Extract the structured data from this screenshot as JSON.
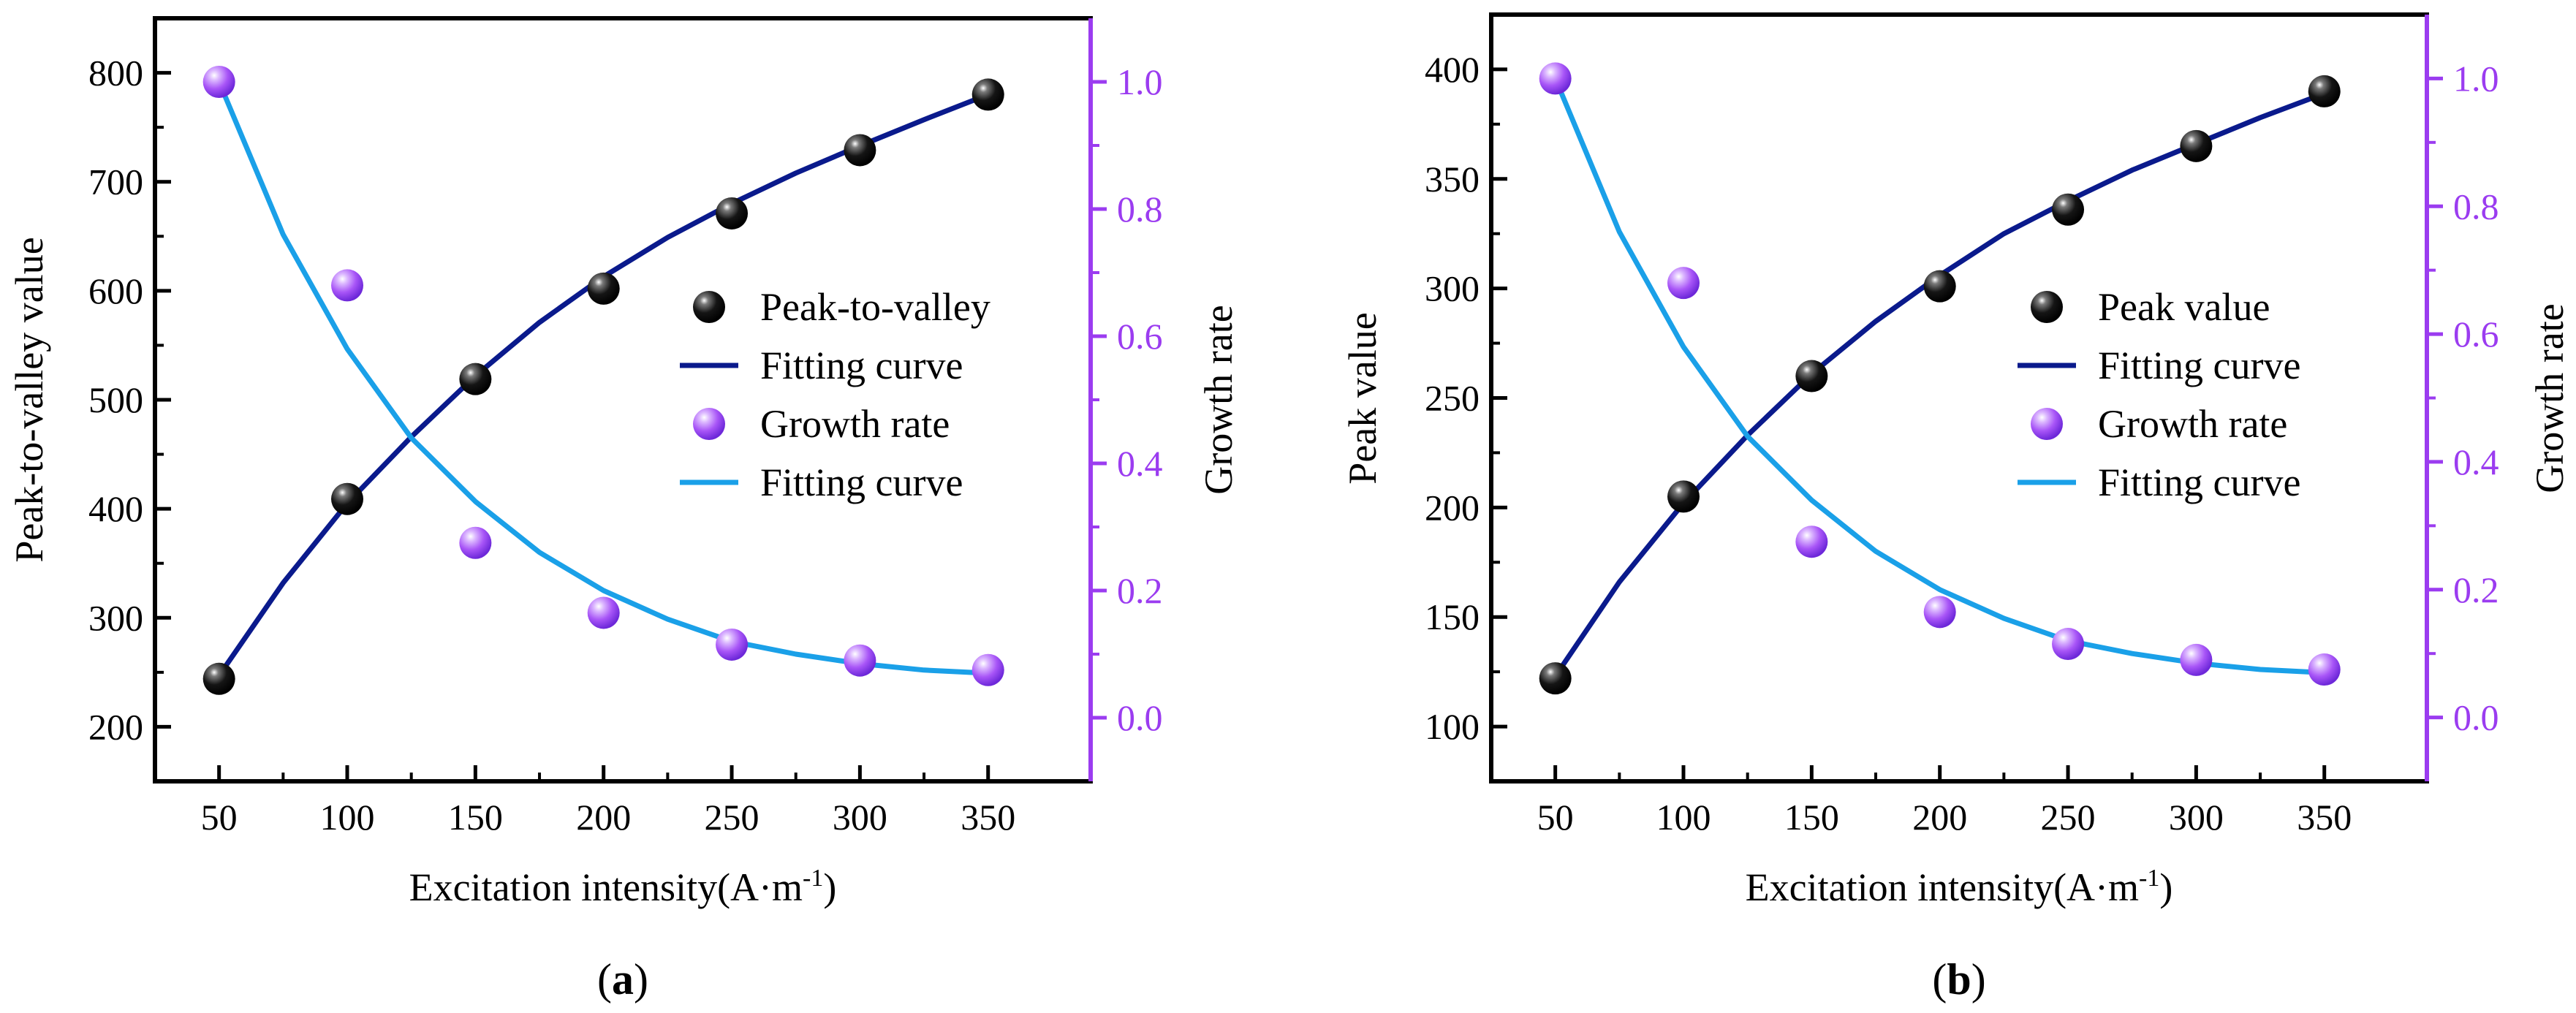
{
  "chart_data": [
    {
      "type": "scatter",
      "panel_label": "a",
      "xlabel": "Excitation intensity(A·m",
      "xlabel_sup": "-1",
      "xlabel_end": ")",
      "ylabel_left": "Peak-to-valley value",
      "ylabel_right": "Growth rate",
      "xlim": [
        25,
        390
      ],
      "ylim_left": [
        150,
        850
      ],
      "ylim_right": [
        -0.1,
        1.1
      ],
      "x_ticks": [
        50,
        100,
        150,
        200,
        250,
        300,
        350
      ],
      "y_left_ticks": [
        200,
        300,
        400,
        500,
        600,
        700,
        800
      ],
      "y_right_ticks": [
        "0.0",
        "0.2",
        "0.4",
        "0.6",
        "0.8",
        "1.0"
      ],
      "legend_position": "center-right",
      "colors": {
        "primary": "#000000",
        "fit_primary": "#0a1a8c",
        "growth": "#9b3cf0",
        "fit_growth": "#1aa0e8",
        "right_axis": "#9b3cf0"
      },
      "series": [
        {
          "name": "Peak-to-valley",
          "axis": "left",
          "kind": "points",
          "x": [
            50,
            100,
            150,
            200,
            250,
            300,
            350
          ],
          "values": [
            244,
            409,
            519,
            602,
            671,
            729,
            780
          ]
        },
        {
          "name": "Fitting curve",
          "axis": "left",
          "kind": "line",
          "x": [
            50,
            75,
            100,
            125,
            150,
            175,
            200,
            225,
            250,
            275,
            300,
            325,
            350
          ],
          "values": [
            247,
            332,
            405,
            466,
            522,
            571,
            613,
            649,
            680,
            708,
            733,
            757,
            780
          ]
        },
        {
          "name": "Growth rate",
          "axis": "right",
          "kind": "points",
          "x": [
            50,
            100,
            150,
            200,
            250,
            300,
            350
          ],
          "values": [
            1.0,
            0.68,
            0.275,
            0.165,
            0.115,
            0.09,
            0.075
          ]
        },
        {
          "name": "Fitting curve",
          "axis": "right",
          "kind": "line",
          "x": [
            50,
            75,
            100,
            125,
            150,
            175,
            200,
            225,
            250,
            275,
            300,
            325,
            350
          ],
          "values": [
            1.0,
            0.76,
            0.58,
            0.44,
            0.34,
            0.26,
            0.2,
            0.155,
            0.12,
            0.1,
            0.085,
            0.075,
            0.07
          ]
        }
      ]
    },
    {
      "type": "scatter",
      "panel_label": "b",
      "xlabel": "Excitation intensity(A·m",
      "xlabel_sup": "-1",
      "xlabel_end": ")",
      "ylabel_left": "Peak value",
      "ylabel_right": "Growth rate",
      "xlim": [
        25,
        390
      ],
      "ylim_left": [
        75,
        425
      ],
      "ylim_right": [
        -0.1,
        1.1
      ],
      "x_ticks": [
        50,
        100,
        150,
        200,
        250,
        300,
        350
      ],
      "y_left_ticks": [
        100,
        150,
        200,
        250,
        300,
        350,
        400
      ],
      "y_right_ticks": [
        "0.0",
        "0.2",
        "0.4",
        "0.6",
        "0.8",
        "1.0"
      ],
      "legend_position": "center-right",
      "colors": {
        "primary": "#000000",
        "fit_primary": "#0a1a8c",
        "growth": "#9b3cf0",
        "fit_growth": "#1aa0e8",
        "right_axis": "#9b3cf0"
      },
      "series": [
        {
          "name": "Peak value",
          "axis": "left",
          "kind": "points",
          "x": [
            50,
            100,
            150,
            200,
            250,
            300,
            350
          ],
          "values": [
            122,
            205,
            260,
            301,
            336,
            365,
            390
          ]
        },
        {
          "name": "Fitting curve",
          "axis": "left",
          "kind": "line",
          "x": [
            50,
            75,
            100,
            125,
            150,
            175,
            200,
            225,
            250,
            275,
            300,
            325,
            350
          ],
          "values": [
            123,
            166,
            202,
            233,
            261,
            285,
            306,
            325,
            340,
            354,
            366,
            378,
            389
          ]
        },
        {
          "name": "Growth rate",
          "axis": "right",
          "kind": "points",
          "x": [
            50,
            100,
            150,
            200,
            250,
            300,
            350
          ],
          "values": [
            1.0,
            0.68,
            0.275,
            0.165,
            0.115,
            0.09,
            0.075
          ]
        },
        {
          "name": "Fitting curve",
          "axis": "right",
          "kind": "line",
          "x": [
            50,
            75,
            100,
            125,
            150,
            175,
            200,
            225,
            250,
            275,
            300,
            325,
            350
          ],
          "values": [
            1.0,
            0.76,
            0.58,
            0.44,
            0.34,
            0.26,
            0.2,
            0.155,
            0.12,
            0.1,
            0.085,
            0.075,
            0.07
          ]
        }
      ]
    }
  ]
}
